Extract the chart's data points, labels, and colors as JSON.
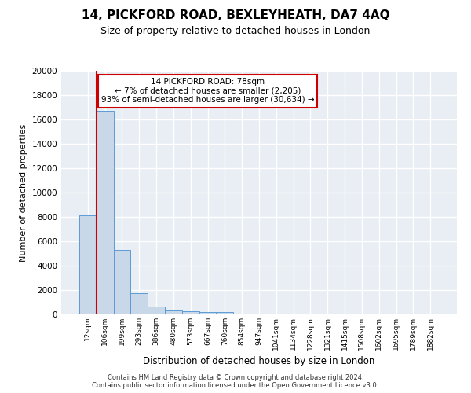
{
  "title": "14, PICKFORD ROAD, BEXLEYHEATH, DA7 4AQ",
  "subtitle": "Size of property relative to detached houses in London",
  "xlabel": "Distribution of detached houses by size in London",
  "ylabel": "Number of detached properties",
  "bar_color": "#c8d8e8",
  "bar_edge_color": "#5b9bd5",
  "bg_color": "#e8eef4",
  "grid_color": "#ffffff",
  "annotation_box_color": "#cc0000",
  "annotation_line1": "14 PICKFORD ROAD: 78sqm",
  "annotation_line2": "← 7% of detached houses are smaller (2,205)",
  "annotation_line3": "93% of semi-detached houses are larger (30,634) →",
  "property_line_color": "#cc0000",
  "bin_labels": [
    "12sqm",
    "106sqm",
    "199sqm",
    "293sqm",
    "386sqm",
    "480sqm",
    "573sqm",
    "667sqm",
    "760sqm",
    "854sqm",
    "947sqm",
    "1041sqm",
    "1134sqm",
    "1228sqm",
    "1321sqm",
    "1415sqm",
    "1508sqm",
    "1602sqm",
    "1695sqm",
    "1789sqm",
    "1882sqm"
  ],
  "bar_heights": [
    8100,
    16700,
    5300,
    1750,
    650,
    350,
    280,
    200,
    200,
    80,
    60,
    40,
    30,
    20,
    15,
    10,
    8,
    5,
    4,
    3,
    0
  ],
  "ylim": [
    0,
    20000
  ],
  "yticks": [
    0,
    2000,
    4000,
    6000,
    8000,
    10000,
    12000,
    14000,
    16000,
    18000,
    20000
  ],
  "footer_line1": "Contains HM Land Registry data © Crown copyright and database right 2024.",
  "footer_line2": "Contains public sector information licensed under the Open Government Licence v3.0."
}
